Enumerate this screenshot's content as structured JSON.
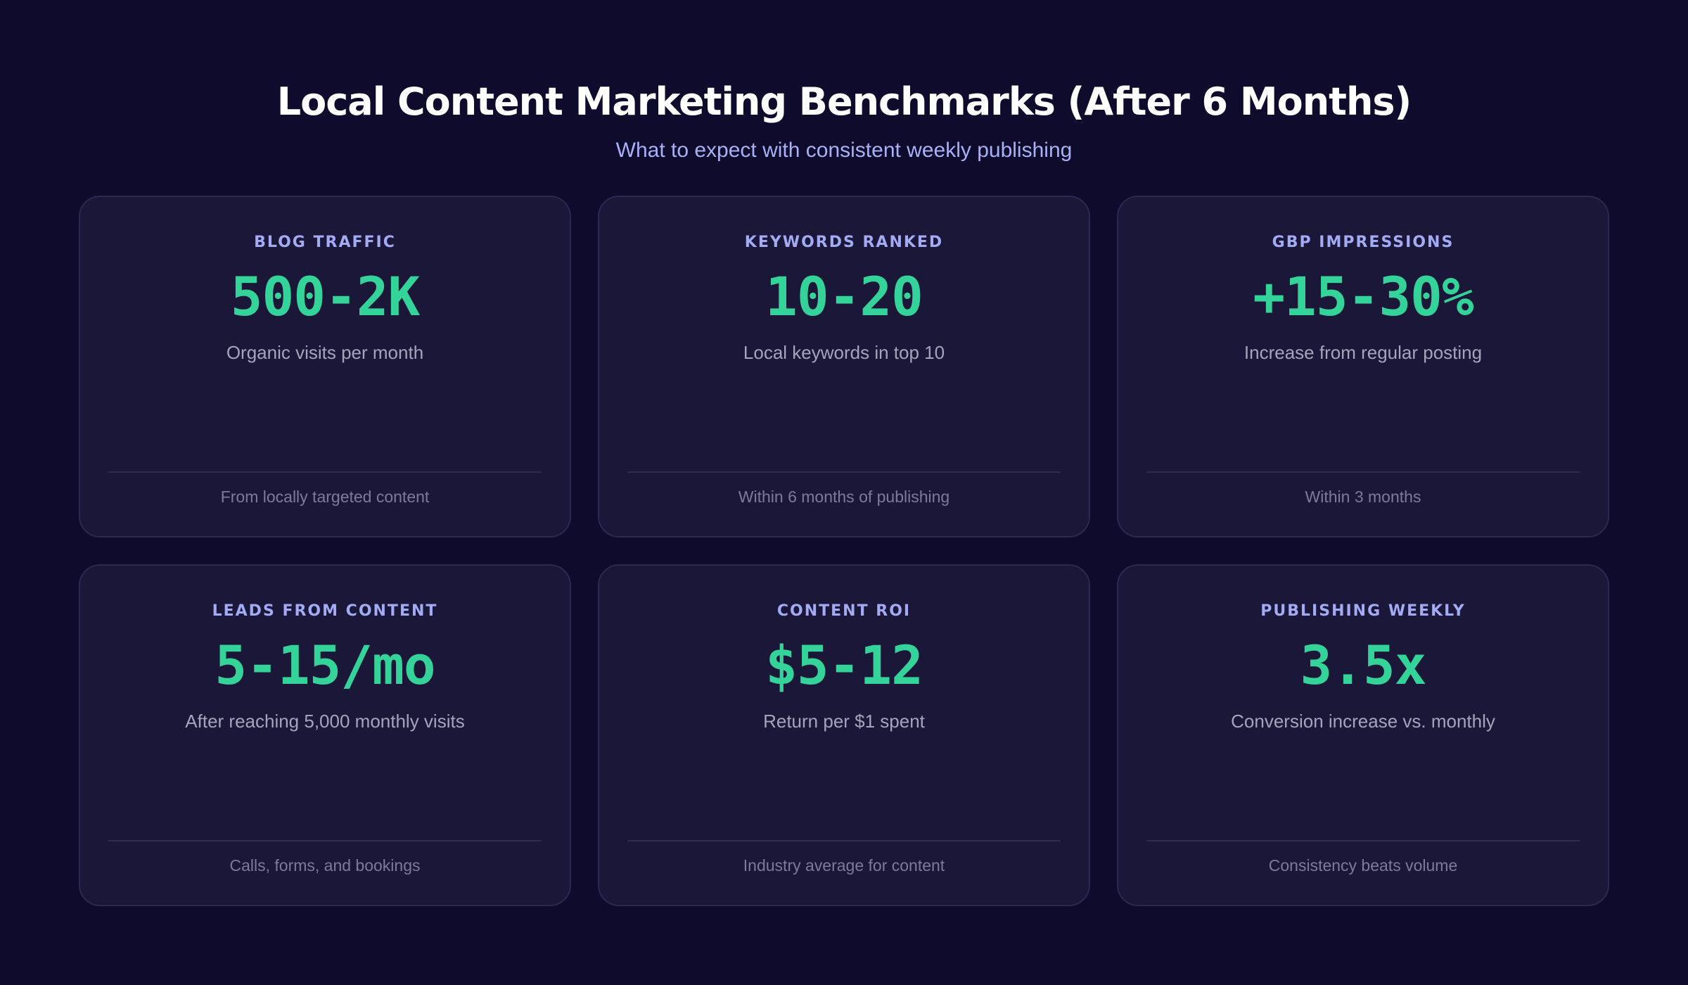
{
  "header": {
    "title": "Local Content Marketing Benchmarks (After 6 Months)",
    "subtitle": "What to expect with consistent weekly publishing"
  },
  "colors": {
    "background": "#0e0b2d",
    "card": "#1b1738",
    "accent_value": "#34d399",
    "label": "#a3abf4"
  },
  "cards": [
    {
      "label": "BLOG TRAFFIC",
      "value": "500-2K",
      "description": "Organic visits per month",
      "footer": "From locally targeted content"
    },
    {
      "label": "KEYWORDS RANKED",
      "value": "10-20",
      "description": "Local keywords in top 10",
      "footer": "Within 6 months of publishing"
    },
    {
      "label": "GBP IMPRESSIONS",
      "value": "+15-30%",
      "description": "Increase from regular posting",
      "footer": "Within 3 months"
    },
    {
      "label": "LEADS FROM CONTENT",
      "value": "5-15/mo",
      "description": "After reaching 5,000 monthly visits",
      "footer": "Calls, forms, and bookings"
    },
    {
      "label": "CONTENT ROI",
      "value": "$5-12",
      "description": "Return per $1 spent",
      "footer": "Industry average for content"
    },
    {
      "label": "PUBLISHING WEEKLY",
      "value": "3.5x",
      "description": "Conversion increase vs. monthly",
      "footer": "Consistency beats volume"
    }
  ]
}
